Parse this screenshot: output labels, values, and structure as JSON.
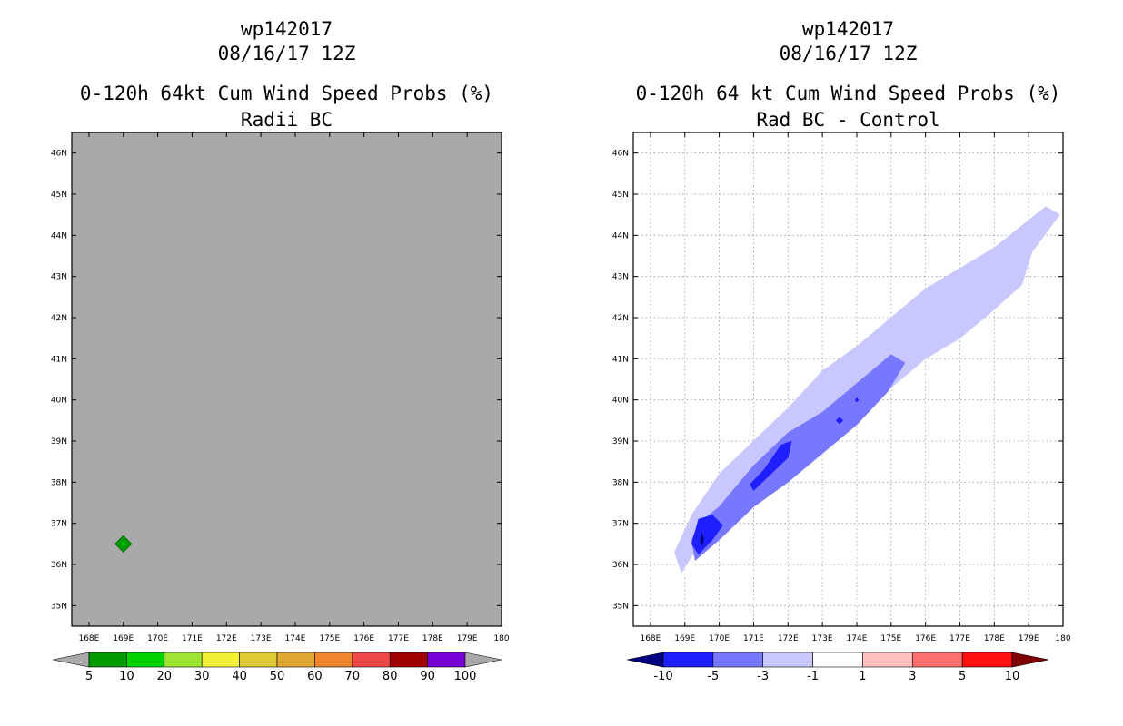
{
  "left_panel": {
    "storm_id": "wp142017",
    "datetime": "08/16/17 12Z",
    "title": "0-120h 64kt Cum Wind Speed Probs (%)",
    "subtitle": "Radii BC"
  },
  "right_panel": {
    "storm_id": "wp142017",
    "datetime": "08/16/17 12Z",
    "title": "0-120h 64 kt Cum Wind Speed Probs (%)",
    "subtitle": "Rad BC - Control"
  },
  "chart_data": [
    {
      "type": "contour-map",
      "panel": "left",
      "title": "0-120h 64kt Cum Wind Speed Probs (%)",
      "subtitle": "Radii BC",
      "x_ticks": [
        "168E",
        "169E",
        "170E",
        "171E",
        "172E",
        "173E",
        "174E",
        "175E",
        "176E",
        "177E",
        "178E",
        "179E",
        "180"
      ],
      "y_ticks": [
        "35N",
        "36N",
        "37N",
        "38N",
        "39N",
        "40N",
        "41N",
        "42N",
        "43N",
        "44N",
        "45N",
        "46N"
      ],
      "xlim": [
        167.5,
        180
      ],
      "ylim": [
        34.5,
        46.5
      ],
      "grid": false,
      "background_color": "#a9a9a9",
      "features": [
        {
          "lon": 169.0,
          "lat": 36.5,
          "min_level": 5,
          "max_level": 10,
          "color": "#009a00",
          "label": "5-10%"
        }
      ],
      "colorbar": {
        "labels": [
          "5",
          "10",
          "20",
          "30",
          "40",
          "50",
          "60",
          "70",
          "80",
          "90",
          "100"
        ],
        "colors": [
          "#009a00",
          "#00d200",
          "#9fe533",
          "#f2f133",
          "#dfcb33",
          "#e0a733",
          "#f08530",
          "#f04848",
          "#a00000",
          "#7a00d8"
        ],
        "under_color": "#a9a9a9",
        "over_color": "#a9a9a9"
      }
    },
    {
      "type": "contour-map",
      "panel": "right",
      "title": "0-120h 64 kt Cum Wind Speed Probs (%)",
      "subtitle": "Rad BC - Control",
      "x_ticks": [
        "168E",
        "169E",
        "170E",
        "171E",
        "172E",
        "173E",
        "174E",
        "175E",
        "176E",
        "177E",
        "178E",
        "179E",
        "180"
      ],
      "y_ticks": [
        "35N",
        "36N",
        "37N",
        "38N",
        "39N",
        "40N",
        "41N",
        "42N",
        "43N",
        "44N",
        "45N",
        "46N"
      ],
      "xlim": [
        167.5,
        180
      ],
      "ylim": [
        34.5,
        46.5
      ],
      "grid": true,
      "background_color": "#ffffff",
      "contours": [
        {
          "level": "-3 to -1",
          "color": "#c8c8ff",
          "points": [
            [
              168.9,
              35.8
            ],
            [
              169.2,
              36.2
            ],
            [
              170.0,
              36.8
            ],
            [
              171.0,
              37.7
            ],
            [
              172.0,
              38.3
            ],
            [
              173.0,
              38.9
            ],
            [
              174.0,
              39.6
            ],
            [
              175.0,
              40.3
            ],
            [
              176.0,
              41.0
            ],
            [
              177.0,
              41.5
            ],
            [
              178.0,
              42.2
            ],
            [
              178.8,
              42.8
            ],
            [
              179.1,
              43.6
            ],
            [
              179.9,
              44.5
            ],
            [
              179.5,
              44.7
            ],
            [
              178.0,
              43.7
            ],
            [
              177.0,
              43.2
            ],
            [
              176.0,
              42.7
            ],
            [
              175.0,
              42.0
            ],
            [
              174.0,
              41.3
            ],
            [
              173.0,
              40.7
            ],
            [
              172.0,
              39.8
            ],
            [
              171.0,
              39.0
            ],
            [
              170.0,
              38.2
            ],
            [
              169.2,
              37.2
            ],
            [
              168.7,
              36.3
            ]
          ]
        },
        {
          "level": "-5 to -3",
          "color": "#7878ff",
          "points": [
            [
              169.3,
              36.1
            ],
            [
              170.0,
              36.6
            ],
            [
              171.0,
              37.4
            ],
            [
              172.0,
              38.0
            ],
            [
              173.0,
              38.7
            ],
            [
              174.0,
              39.4
            ],
            [
              174.9,
              40.2
            ],
            [
              175.4,
              40.9
            ],
            [
              175.0,
              41.1
            ],
            [
              174.0,
              40.4
            ],
            [
              173.0,
              39.7
            ],
            [
              172.0,
              39.2
            ],
            [
              171.0,
              38.4
            ],
            [
              170.0,
              37.4
            ],
            [
              169.4,
              37.0
            ],
            [
              169.2,
              36.6
            ]
          ]
        },
        {
          "level": "-10 to -5",
          "color": "#1e1eff",
          "points": [
            [
              169.4,
              36.25
            ],
            [
              169.8,
              36.6
            ],
            [
              170.1,
              36.95
            ],
            [
              169.8,
              37.2
            ],
            [
              169.4,
              37.1
            ],
            [
              169.2,
              36.5
            ]
          ]
        },
        {
          "level": "-10 to -5",
          "color": "#1e1eff",
          "points": [
            [
              171.0,
              37.8
            ],
            [
              171.5,
              38.2
            ],
            [
              172.0,
              38.6
            ],
            [
              172.1,
              39.0
            ],
            [
              171.8,
              38.9
            ],
            [
              171.3,
              38.3
            ],
            [
              170.9,
              37.95
            ]
          ]
        },
        {
          "level": "-10 to -5",
          "color": "#1e1eff",
          "points": [
            [
              173.4,
              39.5
            ],
            [
              173.5,
              39.42
            ],
            [
              173.6,
              39.5
            ],
            [
              173.5,
              39.58
            ]
          ]
        },
        {
          "level": "-10 to -5",
          "color": "#1e1eff",
          "points": [
            [
              173.95,
              40.0
            ],
            [
              174.0,
              39.95
            ],
            [
              174.05,
              40.0
            ],
            [
              174.0,
              40.05
            ]
          ]
        },
        {
          "level": "below -10",
          "color": "#000080",
          "points": [
            [
              169.5,
              36.45
            ],
            [
              169.55,
              36.6
            ],
            [
              169.5,
              36.75
            ],
            [
              169.45,
              36.6
            ]
          ]
        }
      ],
      "colorbar": {
        "labels": [
          "-10",
          "-5",
          "-3",
          "-1",
          "1",
          "3",
          "5",
          "10"
        ],
        "colors": [
          "#1e1eff",
          "#7878ff",
          "#c8c8ff",
          "#ffffff",
          "#ffc0c0",
          "#ff7070",
          "#ff1010"
        ],
        "under_color": "#000080",
        "over_color": "#800000"
      }
    }
  ]
}
